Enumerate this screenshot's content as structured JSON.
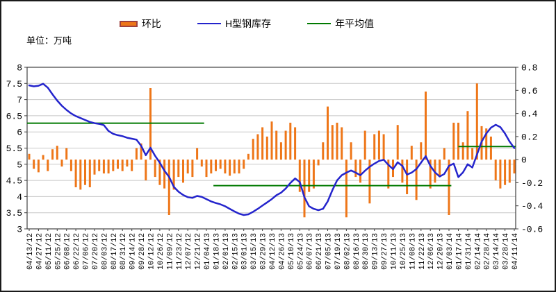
{
  "unit_label": "单位：万吨",
  "legend": {
    "items": [
      {
        "label": "环比",
        "type": "bar",
        "color": "#EE7618",
        "border": "#9E413E"
      },
      {
        "label": "H型钢库存",
        "type": "line",
        "color": "#2424CC",
        "border": "#2424CC"
      },
      {
        "label": "年平均值",
        "type": "line",
        "color": "#007A00",
        "border": "#007A00"
      }
    ]
  },
  "chart_data": {
    "type": "combo-bar-line",
    "grid": "horizontal",
    "legend_position": "top",
    "colors": {
      "bar": "#EE7618",
      "line": "#2424CC",
      "average": "#007A00",
      "gridline": "#C8C8C8",
      "axis": "#404040"
    },
    "left_axis": {
      "min": 3,
      "max": 8,
      "step": 0.5,
      "tick_labels": [
        "8",
        "7.5",
        "7",
        "6.5",
        "6",
        "5.5",
        "5",
        "4.5",
        "4",
        "3.5",
        "3"
      ]
    },
    "right_axis": {
      "min": -0.6,
      "max": 0.8,
      "step": 0.2,
      "tick_labels": [
        "0.8",
        "0.6",
        "0.4",
        "0.2",
        "0",
        "-0.2",
        "-0.4",
        "-0.6"
      ]
    },
    "points_per_tick": 2,
    "x_tick_labels": [
      "04/13/12",
      "04/27/12",
      "05/11/12",
      "05/25/12",
      "06/08/12",
      "06/22/12",
      "07/06/12",
      "07/20/12",
      "08/03/12",
      "08/17/12",
      "08/31/12",
      "09/14/12",
      "09/28/12",
      "10/12/12",
      "10/26/12",
      "11/09/12",
      "11/23/12",
      "12/07/12",
      "12/21/12",
      "01/04/13",
      "01/18/13",
      "02/01/13",
      "02/15/13",
      "03/01/13",
      "03/15/13",
      "03/29/13",
      "04/12/13",
      "04/26/13",
      "05/10/13",
      "05/24/13",
      "06/07/13",
      "06/21/13",
      "07/05/13",
      "07/19/13",
      "08/02/13",
      "08/16/13",
      "08/30/13",
      "09/13/13",
      "09/27/13",
      "10/11/13",
      "10/25/13",
      "11/08/13",
      "11/22/13",
      "12/06/13",
      "12/20/13",
      "01/03/14",
      "01/17/14",
      "01/31/14",
      "02/14/14",
      "02/28/14",
      "03/14/14",
      "03/28/14",
      "04/11/14"
    ],
    "series": [
      {
        "name": "环比",
        "type": "bar",
        "axis": "right",
        "color": "#EE7618",
        "values": [
          0.05,
          -0.08,
          -0.11,
          0.04,
          -0.1,
          0.09,
          0.12,
          -0.06,
          0.1,
          -0.1,
          -0.24,
          -0.26,
          -0.22,
          -0.24,
          -0.13,
          -0.1,
          -0.12,
          -0.12,
          -0.1,
          -0.08,
          -0.1,
          -0.06,
          -0.1,
          0.1,
          0.14,
          -0.18,
          0.62,
          -0.15,
          -0.22,
          -0.25,
          -0.48,
          -0.26,
          -0.15,
          -0.2,
          -0.12,
          -0.15,
          0.1,
          -0.06,
          -0.15,
          -0.12,
          -0.1,
          -0.08,
          -0.12,
          -0.14,
          -0.12,
          -0.12,
          -0.08,
          0.05,
          0.18,
          0.22,
          0.28,
          0.2,
          0.33,
          0.25,
          0.15,
          0.25,
          0.32,
          0.28,
          -0.28,
          -0.5,
          -0.28,
          -0.25,
          -0.05,
          0.15,
          0.46,
          0.3,
          0.32,
          0.28,
          -0.5,
          0.15,
          -0.15,
          -0.2,
          0.25,
          -0.38,
          0.22,
          0.25,
          0.22,
          -0.25,
          -0.15,
          0.3,
          -0.2,
          -0.3,
          0.12,
          -0.35,
          0.15,
          0.59,
          -0.25,
          -0.2,
          -0.15,
          0.1,
          -0.48,
          0.32,
          0.32,
          0.15,
          0.42,
          0.1,
          0.66,
          0.29,
          0.27,
          0.2,
          -0.18,
          -0.25,
          -0.22,
          -0.2,
          -0.12
        ]
      },
      {
        "name": "H型钢库存",
        "type": "line",
        "axis": "left",
        "color": "#2424CC",
        "values": [
          7.44,
          7.41,
          7.43,
          7.49,
          7.37,
          7.16,
          6.97,
          6.81,
          6.68,
          6.57,
          6.49,
          6.43,
          6.37,
          6.31,
          6.27,
          6.25,
          6.21,
          6.03,
          5.94,
          5.9,
          5.87,
          5.82,
          5.79,
          5.76,
          5.57,
          5.28,
          5.51,
          5.26,
          5.05,
          4.8,
          4.61,
          4.3,
          4.15,
          4.05,
          3.98,
          3.96,
          4.02,
          3.99,
          3.92,
          3.85,
          3.8,
          3.76,
          3.7,
          3.62,
          3.54,
          3.47,
          3.43,
          3.45,
          3.53,
          3.62,
          3.72,
          3.82,
          3.92,
          4.04,
          4.12,
          4.25,
          4.42,
          4.56,
          4.45,
          3.98,
          3.7,
          3.62,
          3.58,
          3.62,
          3.85,
          4.2,
          4.5,
          4.66,
          4.74,
          4.81,
          4.74,
          4.66,
          4.8,
          4.92,
          5.02,
          5.1,
          5.14,
          4.98,
          4.85,
          5.06,
          4.95,
          4.68,
          4.74,
          4.85,
          5.05,
          5.25,
          4.95,
          4.75,
          4.62,
          4.7,
          4.95,
          5.02,
          4.6,
          4.75,
          5.0,
          4.9,
          5.3,
          5.7,
          5.95,
          6.13,
          6.22,
          6.15,
          5.95,
          5.7,
          5.5
        ]
      },
      {
        "name": "年平均值",
        "type": "line-segments",
        "axis": "left",
        "color": "#007A00",
        "segments": [
          {
            "from_index": -0.5,
            "to_index": 37.5,
            "value": 6.27
          },
          {
            "from_index": 39.5,
            "to_index": 90.5,
            "value": 4.34
          },
          {
            "from_index": 92.0,
            "to_index": 104.3,
            "value": 5.55
          }
        ]
      }
    ]
  }
}
